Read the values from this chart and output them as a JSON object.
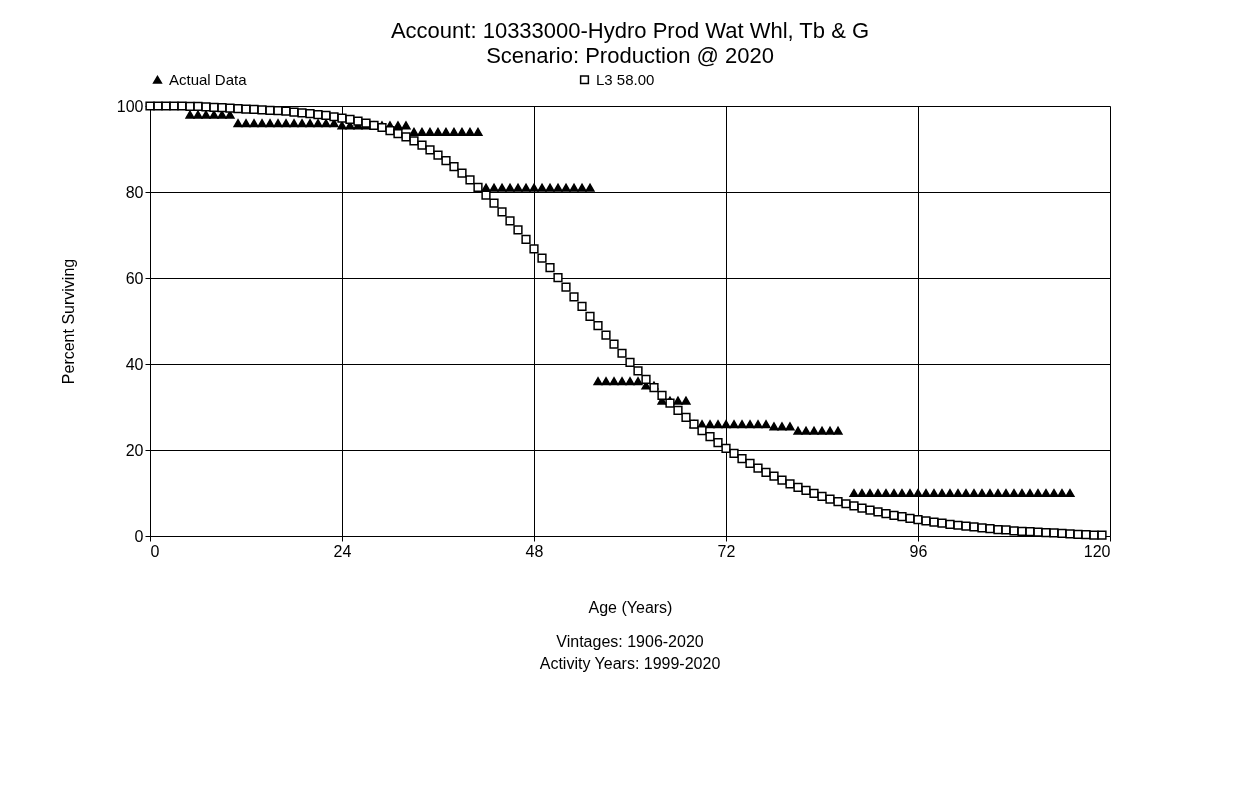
{
  "chart_data": {
    "type": "scatter",
    "title": "Account: 10333000-Hydro Prod Wat Whl, Tb & G",
    "subtitle": "Scenario: Production @ 2020",
    "xlabel": "Age (Years)",
    "ylabel": "Percent Surviving",
    "annotations": [
      "Vintages: 1906-2020",
      "Activity Years: 1999-2020"
    ],
    "xlim": [
      0,
      120
    ],
    "xticks": [
      0,
      24,
      48,
      72,
      96,
      120
    ],
    "ylim": [
      0,
      100
    ],
    "yticks": [
      0,
      20,
      40,
      60,
      80,
      100
    ],
    "grid": true,
    "legend": "top",
    "series": [
      {
        "name": "Actual Data",
        "color": "#000000",
        "marker": "triangle",
        "x": [
          5,
          6,
          7,
          8,
          9,
          10,
          11,
          12,
          13,
          14,
          15,
          16,
          17,
          18,
          19,
          20,
          21,
          22,
          23,
          24,
          25,
          26,
          27,
          28,
          29,
          30,
          31,
          32,
          33,
          34,
          35,
          36,
          37,
          38,
          39,
          40,
          41,
          42,
          43,
          44,
          45,
          46,
          47,
          48,
          49,
          50,
          51,
          52,
          53,
          54,
          55,
          56,
          57,
          58,
          59,
          60,
          61,
          62,
          63,
          64,
          65,
          66,
          67,
          68,
          69,
          70,
          71,
          72,
          73,
          74,
          75,
          76,
          77,
          78,
          79,
          80,
          81,
          82,
          83,
          84,
          85,
          86,
          88,
          89,
          90,
          91,
          92,
          93,
          94,
          95,
          96,
          97,
          98,
          99,
          100,
          101,
          102,
          103,
          104,
          105,
          106,
          107,
          108,
          109,
          110,
          111,
          112,
          113,
          114,
          115
        ],
        "values": [
          98,
          98,
          98,
          98,
          98,
          98,
          96,
          96,
          96,
          96,
          96,
          96,
          96,
          96,
          96,
          96,
          96,
          96,
          96,
          95.5,
          95.5,
          95.5,
          95.5,
          95.5,
          95.5,
          95.5,
          95.5,
          95.5,
          94,
          94,
          94,
          94,
          94,
          94,
          94,
          94,
          94,
          81,
          81,
          81,
          81,
          81,
          81,
          81,
          81,
          81,
          81,
          81,
          81,
          81,
          81,
          36,
          36,
          36,
          36,
          36,
          36,
          35,
          35,
          31.5,
          31.5,
          31.5,
          31.5,
          26,
          26,
          26,
          26,
          26,
          26,
          26,
          26,
          26,
          26,
          25.5,
          25.5,
          25.5,
          24.5,
          24.5,
          24.5,
          24.5,
          24.5,
          24.5,
          10,
          10,
          10,
          10,
          10,
          10,
          10,
          10,
          10,
          10,
          10,
          10,
          10,
          10,
          10,
          10,
          10,
          10,
          10,
          10,
          10,
          10,
          10,
          10,
          10,
          10,
          10,
          10
        ]
      },
      {
        "name": "L3 58.00",
        "color": "#000000",
        "marker": "square",
        "x": [
          0,
          1,
          2,
          3,
          4,
          5,
          6,
          7,
          8,
          9,
          10,
          11,
          12,
          13,
          14,
          15,
          16,
          17,
          18,
          19,
          20,
          21,
          22,
          23,
          24,
          25,
          26,
          27,
          28,
          29,
          30,
          31,
          32,
          33,
          34,
          35,
          36,
          37,
          38,
          39,
          40,
          41,
          42,
          43,
          44,
          45,
          46,
          47,
          48,
          49,
          50,
          51,
          52,
          53,
          54,
          55,
          56,
          57,
          58,
          59,
          60,
          61,
          62,
          63,
          64,
          65,
          66,
          67,
          68,
          69,
          70,
          71,
          72,
          73,
          74,
          75,
          76,
          77,
          78,
          79,
          80,
          81,
          82,
          83,
          84,
          85,
          86,
          87,
          88,
          89,
          90,
          91,
          92,
          93,
          94,
          95,
          96,
          97,
          98,
          99,
          100,
          101,
          102,
          103,
          104,
          105,
          106,
          107,
          108,
          109,
          110,
          111,
          112,
          113,
          114,
          115,
          116,
          117,
          118,
          119
        ],
        "values": [
          100,
          100,
          100,
          100,
          100,
          99.9,
          99.9,
          99.8,
          99.7,
          99.6,
          99.5,
          99.4,
          99.3,
          99.2,
          99.1,
          99,
          98.9,
          98.8,
          98.6,
          98.4,
          98.2,
          98,
          97.8,
          97.5,
          97.2,
          96.9,
          96.5,
          96,
          95.5,
          95,
          94.3,
          93.6,
          92.8,
          91.9,
          90.9,
          89.8,
          88.6,
          87.3,
          85.9,
          84.4,
          82.8,
          81.1,
          79.3,
          77.4,
          75.4,
          73.3,
          71.2,
          69,
          66.8,
          64.6,
          62.4,
          60.1,
          57.9,
          55.6,
          53.4,
          51.1,
          48.9,
          46.7,
          44.6,
          42.5,
          40.4,
          38.4,
          36.4,
          34.5,
          32.7,
          30.9,
          29.2,
          27.6,
          26,
          24.5,
          23.1,
          21.7,
          20.4,
          19.2,
          18,
          16.9,
          15.8,
          14.8,
          13.9,
          13,
          12.1,
          11.3,
          10.6,
          9.9,
          9.2,
          8.6,
          8,
          7.5,
          7,
          6.5,
          6,
          5.6,
          5.2,
          4.8,
          4.5,
          4.1,
          3.8,
          3.5,
          3.2,
          3,
          2.7,
          2.5,
          2.3,
          2.1,
          1.9,
          1.7,
          1.5,
          1.4,
          1.2,
          1.1,
          1,
          0.9,
          0.8,
          0.7,
          0.6,
          0.5,
          0.4,
          0.3,
          0.2,
          0.2
        ]
      }
    ]
  }
}
